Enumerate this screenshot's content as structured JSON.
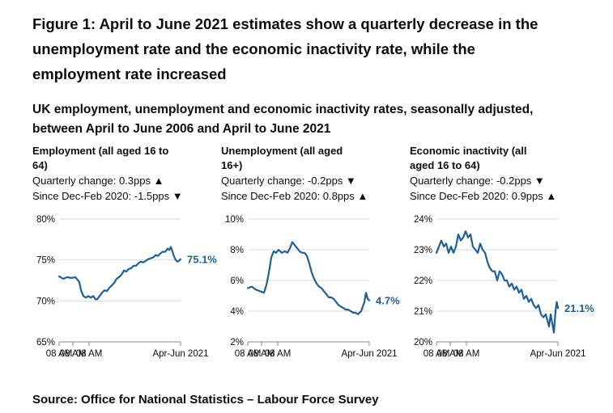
{
  "figure": {
    "title": "Figure 1: April to June 2021 estimates show a quarterly decrease in the unemployment rate and the economic inactivity rate, while the employment rate increased",
    "subtitle": "UK employment, unemployment and economic inactivity rates, seasonally adjusted, between April to June 2006 and April to June 2021",
    "source": "Source: Office for National Statistics – Labour Force Survey",
    "line_color": "#206095"
  },
  "chart_data": [
    {
      "type": "line",
      "title": "Employment (all aged 16 to 64)",
      "quarterly_change": "Quarterly change: 0.3pps ▲",
      "since_dec_feb": "Since Dec-Feb 2020: -1.5pps ▼",
      "x_start": 2006.3,
      "x_end": 2021.3,
      "ylim": [
        65,
        80
      ],
      "yticks": [
        "80%",
        "75%",
        "70%",
        "65%"
      ],
      "ytick_values": [
        80,
        75,
        70,
        65
      ],
      "xticks": [
        "08 AM",
        "08 AM",
        "08 AM",
        "Apr-Jun 2021"
      ],
      "xtick_values": [
        2006.3,
        2008.0,
        2010.0,
        2021.3
      ],
      "end_label": "75.1%",
      "series": [
        {
          "name": "Employment rate",
          "x": [
            2006.3,
            2006.8,
            2007.3,
            2007.8,
            2008.3,
            2008.8,
            2009.0,
            2009.3,
            2009.6,
            2009.9,
            2010.2,
            2010.5,
            2010.8,
            2011.0,
            2011.3,
            2011.6,
            2011.9,
            2012.2,
            2012.5,
            2012.8,
            2013.1,
            2013.4,
            2013.7,
            2014.0,
            2014.3,
            2014.6,
            2014.9,
            2015.2,
            2015.5,
            2015.8,
            2016.1,
            2016.4,
            2016.7,
            2017.0,
            2017.3,
            2017.6,
            2017.9,
            2018.2,
            2018.5,
            2018.8,
            2019.1,
            2019.4,
            2019.7,
            2019.9,
            2020.1,
            2020.3,
            2020.5,
            2020.7,
            2020.9,
            2021.1,
            2021.3
          ],
          "values": [
            73.0,
            72.7,
            72.9,
            72.8,
            72.9,
            72.3,
            71.3,
            70.6,
            70.4,
            70.6,
            70.4,
            70.6,
            70.2,
            70.2,
            70.6,
            71.0,
            71.3,
            71.2,
            71.6,
            71.9,
            72.2,
            72.7,
            72.9,
            73.2,
            73.7,
            73.6,
            73.9,
            74.0,
            74.3,
            74.3,
            74.6,
            74.8,
            74.7,
            74.9,
            75.1,
            75.2,
            75.3,
            75.6,
            75.5,
            75.8,
            76.0,
            76.0,
            76.4,
            76.2,
            76.6,
            76.0,
            75.4,
            75.0,
            74.8,
            74.9,
            75.1
          ]
        }
      ]
    },
    {
      "type": "line",
      "title": "Unemployment (all aged 16+)",
      "quarterly_change": "Quarterly change: -0.2pps ▼",
      "since_dec_feb": "Since Dec-Feb 2020: 0.8pps ▲",
      "x_start": 2006.3,
      "x_end": 2021.3,
      "ylim": [
        2,
        10
      ],
      "yticks": [
        "10%",
        "8%",
        "6%",
        "4%",
        "2%"
      ],
      "ytick_values": [
        10,
        8,
        6,
        4,
        2
      ],
      "xticks": [
        "08 AM",
        "08 AM",
        "08 AM",
        "Apr-Jun 2021"
      ],
      "xtick_values": [
        2006.3,
        2008.0,
        2010.0,
        2021.3
      ],
      "end_label": "4.7%",
      "series": [
        {
          "name": "Unemployment rate",
          "x": [
            2006.3,
            2006.8,
            2007.3,
            2007.8,
            2008.3,
            2008.6,
            2008.9,
            2009.2,
            2009.5,
            2009.8,
            2010.1,
            2010.5,
            2010.9,
            2011.2,
            2011.5,
            2011.8,
            2012.1,
            2012.4,
            2012.7,
            2013.0,
            2013.3,
            2013.6,
            2013.9,
            2014.2,
            2014.5,
            2014.8,
            2015.1,
            2015.4,
            2015.7,
            2016.0,
            2016.3,
            2016.6,
            2016.9,
            2017.2,
            2017.5,
            2017.8,
            2018.1,
            2018.4,
            2018.7,
            2019.0,
            2019.3,
            2019.6,
            2019.9,
            2020.1,
            2020.3,
            2020.5,
            2020.7,
            2020.9,
            2021.1,
            2021.3
          ],
          "values": [
            5.5,
            5.6,
            5.4,
            5.3,
            5.2,
            5.7,
            6.5,
            7.5,
            7.9,
            7.8,
            8.0,
            7.8,
            7.9,
            7.8,
            8.1,
            8.5,
            8.3,
            8.1,
            7.9,
            7.8,
            7.8,
            7.6,
            7.1,
            6.5,
            6.1,
            5.8,
            5.6,
            5.5,
            5.3,
            5.1,
            4.9,
            4.9,
            4.8,
            4.6,
            4.4,
            4.3,
            4.2,
            4.1,
            4.1,
            4.0,
            3.9,
            3.9,
            3.8,
            3.9,
            4.0,
            4.3,
            4.6,
            5.2,
            4.8,
            4.7
          ]
        }
      ]
    },
    {
      "type": "line",
      "title": "Economic inactivity (all aged 16 to 64)",
      "quarterly_change": "Quarterly change: -0.2pps ▼",
      "since_dec_feb": "Since Dec-Feb 2020: 0.9pps ▲",
      "x_start": 2006.3,
      "x_end": 2021.3,
      "ylim": [
        20,
        24
      ],
      "yticks": [
        "24%",
        "23%",
        "22%",
        "21%",
        "20%"
      ],
      "ytick_values": [
        24,
        23,
        22,
        21,
        20
      ],
      "xticks": [
        "08 AM",
        "08 AM",
        "08 AM",
        "Apr-Jun 2021"
      ],
      "xtick_values": [
        2006.3,
        2008.0,
        2010.0,
        2021.3
      ],
      "end_label": "21.1%",
      "series": [
        {
          "name": "Economic inactivity rate",
          "x": [
            2006.3,
            2006.6,
            2006.9,
            2007.2,
            2007.5,
            2007.8,
            2008.1,
            2008.4,
            2008.7,
            2009.0,
            2009.3,
            2009.6,
            2009.9,
            2010.2,
            2010.5,
            2010.8,
            2011.1,
            2011.4,
            2011.7,
            2012.0,
            2012.3,
            2012.6,
            2012.9,
            2013.2,
            2013.5,
            2013.8,
            2014.1,
            2014.4,
            2014.7,
            2015.0,
            2015.3,
            2015.6,
            2015.9,
            2016.2,
            2016.5,
            2016.8,
            2017.1,
            2017.4,
            2017.7,
            2018.0,
            2018.3,
            2018.6,
            2018.9,
            2019.2,
            2019.5,
            2019.8,
            2020.0,
            2020.2,
            2020.4,
            2020.6,
            2020.8,
            2021.0,
            2021.15,
            2021.3
          ],
          "values": [
            22.9,
            23.1,
            23.3,
            23.1,
            23.2,
            22.9,
            23.1,
            22.9,
            23.1,
            23.5,
            23.3,
            23.4,
            23.6,
            23.4,
            23.5,
            23.1,
            23.0,
            22.9,
            23.2,
            23.0,
            22.9,
            22.6,
            22.4,
            22.3,
            22.3,
            22.0,
            22.3,
            22.2,
            22.0,
            22.0,
            21.8,
            21.9,
            21.7,
            21.8,
            21.6,
            21.7,
            21.4,
            21.5,
            21.3,
            21.4,
            21.2,
            21.1,
            21.2,
            20.9,
            20.8,
            20.9,
            20.7,
            20.5,
            20.9,
            20.6,
            20.3,
            21.0,
            21.3,
            21.1
          ]
        }
      ]
    }
  ]
}
